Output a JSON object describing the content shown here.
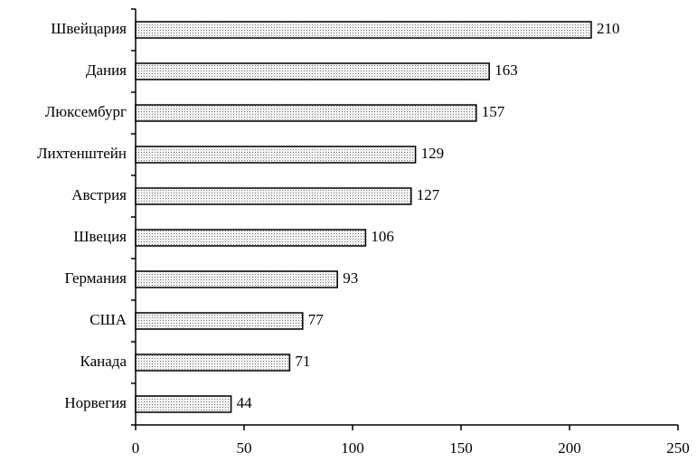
{
  "chart_data": {
    "type": "bar",
    "orientation": "horizontal",
    "categories": [
      "Швейцария",
      "Дания",
      "Люксембург",
      "Лихтенштейн",
      "Австрия",
      "Швеция",
      "Германия",
      "США",
      "Канада",
      "Норвегия"
    ],
    "values": [
      210,
      163,
      157,
      129,
      127,
      106,
      93,
      77,
      71,
      44
    ],
    "color": "#d9d9d9",
    "xlim": [
      0,
      250
    ],
    "xticks": [
      0,
      50,
      100,
      150,
      200,
      250
    ],
    "grid": false
  }
}
